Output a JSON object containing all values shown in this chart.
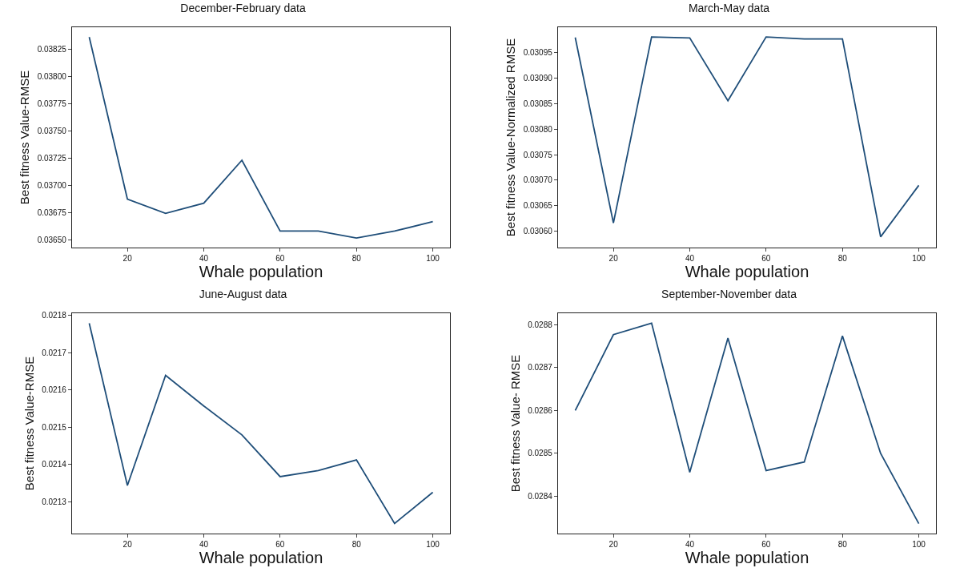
{
  "chart_data": [
    {
      "type": "line",
      "title": "December-February data",
      "xlabel": "Whale population",
      "ylabel": "Best fitness Value-RMSE",
      "x": [
        10,
        20,
        30,
        40,
        50,
        60,
        70,
        80,
        90,
        100
      ],
      "series": [
        {
          "color": "#1f4e79",
          "values": [
            0.03836,
            0.036874,
            0.036743,
            0.036837,
            0.037231,
            0.036581,
            0.036581,
            0.036518,
            0.036581,
            0.036667
          ]
        }
      ],
      "xlim": [
        5.5,
        104.5
      ],
      "xticks": [
        20,
        40,
        60,
        80,
        100
      ],
      "ylim": [
        0.03643,
        0.03845
      ],
      "yticks": [
        {
          "value": 0.0365,
          "label": "0.03650"
        },
        0.03675,
        {
          "value": 0.037,
          "label": "0.03700"
        },
        0.03725,
        {
          "value": 0.0375,
          "label": "0.03750"
        },
        0.03775,
        {
          "value": 0.038,
          "label": "0.03800"
        },
        0.03825
      ],
      "grid": false
    },
    {
      "type": "line",
      "title": "March-May data",
      "xlabel": "Whale population",
      "ylabel": "Best fitness Value-Normalized RMSE",
      "x": [
        10,
        20,
        30,
        40,
        50,
        60,
        70,
        80,
        90,
        100
      ],
      "series": [
        {
          "color": "#1f4e79",
          "values": [
            0.03098,
            0.030616,
            0.030981,
            0.030979,
            0.030856,
            0.030981,
            0.030977,
            0.030977,
            0.030589,
            0.03069
          ]
        }
      ],
      "xlim": [
        5.5,
        104.5
      ],
      "xticks": [
        20,
        40,
        60,
        80,
        100
      ],
      "ylim": [
        0.030568,
        0.031
      ],
      "yticks": [
        {
          "value": 0.0306,
          "label": "0.03060"
        },
        0.03065,
        {
          "value": 0.0307,
          "label": "0.03070"
        },
        0.03075,
        {
          "value": 0.0308,
          "label": "0.03080"
        },
        0.03085,
        {
          "value": 0.0309,
          "label": "0.03090"
        },
        0.03095
      ],
      "grid": false
    },
    {
      "type": "line",
      "title": "June-August data",
      "xlabel": "Whale population",
      "ylabel": "Best fitness Value-RMSE",
      "x": [
        10,
        20,
        30,
        40,
        50,
        60,
        70,
        80,
        90,
        100
      ],
      "series": [
        {
          "color": "#1f4e79",
          "values": [
            0.021779,
            0.021343,
            0.021639,
            0.021557,
            0.021479,
            0.021367,
            0.021383,
            0.021412,
            0.021241,
            0.021325
          ]
        }
      ],
      "xlim": [
        5.5,
        104.5
      ],
      "xticks": [
        20,
        40,
        60,
        80,
        100
      ],
      "ylim": [
        0.021214,
        0.021806
      ],
      "yticks": [
        0.0213,
        0.0214,
        0.0215,
        0.0216,
        0.0217,
        0.0218
      ],
      "grid": false
    },
    {
      "type": "line",
      "title": "September-November data",
      "xlabel": "Whale population",
      "ylabel": "Best fitness Value- RMSE",
      "x": [
        10,
        20,
        30,
        40,
        50,
        60,
        70,
        80,
        90,
        100
      ],
      "series": [
        {
          "color": "#1f4e79",
          "values": [
            0.0286,
            0.028777,
            0.028804,
            0.028456,
            0.028769,
            0.02846,
            0.02848,
            0.028774,
            0.0285,
            0.028336
          ]
        }
      ],
      "xlim": [
        5.5,
        104.5
      ],
      "xticks": [
        20,
        40,
        60,
        80,
        100
      ],
      "ylim": [
        0.028313,
        0.028827
      ],
      "yticks": [
        0.0284,
        0.0285,
        0.0286,
        0.0287,
        0.0288
      ],
      "grid": false
    }
  ]
}
